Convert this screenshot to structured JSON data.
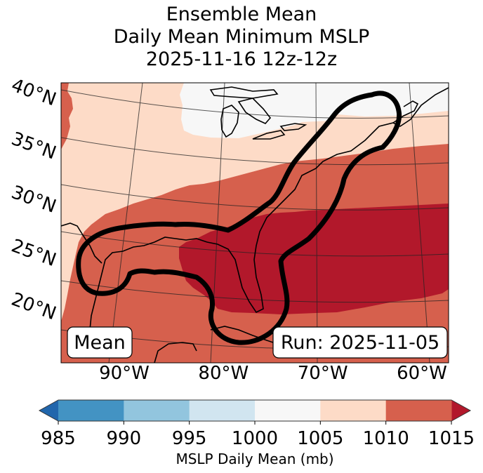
{
  "chart_data": {
    "type": "heatmap",
    "title_lines": [
      "Ensemble Mean",
      "Daily Mean Minimum MSLP",
      "2025-11-16 12z-12z"
    ],
    "map": {
      "extent_lon": [
        -97,
        -58
      ],
      "extent_lat": [
        16,
        41
      ],
      "lat_ticks": [
        "40°N",
        "35°N",
        "30°N",
        "25°N",
        "20°N"
      ],
      "lat_values": [
        40,
        35,
        30,
        25,
        20
      ],
      "lon_ticks": [
        "90°W",
        "80°W",
        "70°W",
        "60°W"
      ],
      "lon_values": [
        -90,
        -80,
        -70,
        -60
      ],
      "gridlines": true,
      "regions": [
        {
          "name": "great-lakes-low",
          "range_mb": "1000-1005",
          "color": "#f7f7f7"
        },
        {
          "name": "north-band",
          "range_mb": "1005-1010",
          "color": "#fddbc7"
        },
        {
          "name": "mid-band",
          "range_mb": "1010-1015",
          "color": "#d6604d"
        },
        {
          "name": "southeast-high",
          "range_mb": ">1015",
          "color": "#b2182b"
        }
      ],
      "contour": {
        "description": "Thick black outline over Gulf of Mexico, Florida and US East Coast to Nova Scotia",
        "color": "#000000"
      }
    },
    "annotations": {
      "left_box": "Mean",
      "right_box": "Run: 2025-11-05"
    },
    "colorbar": {
      "boundaries": [
        985,
        990,
        995,
        1000,
        1005,
        1010,
        1015
      ],
      "tick_labels": [
        "985",
        "990",
        "995",
        "1000",
        "1005",
        "1010",
        "1015"
      ],
      "colors": [
        "#4393c3",
        "#92c5de",
        "#d1e5f0",
        "#f7f7f7",
        "#fddbc7",
        "#d6604d"
      ],
      "extend_min_color": "#2166ac",
      "extend_max_color": "#b2182b",
      "label": "MSLP Daily Mean (mb)",
      "orientation": "horizontal",
      "placement": "bottom"
    }
  }
}
